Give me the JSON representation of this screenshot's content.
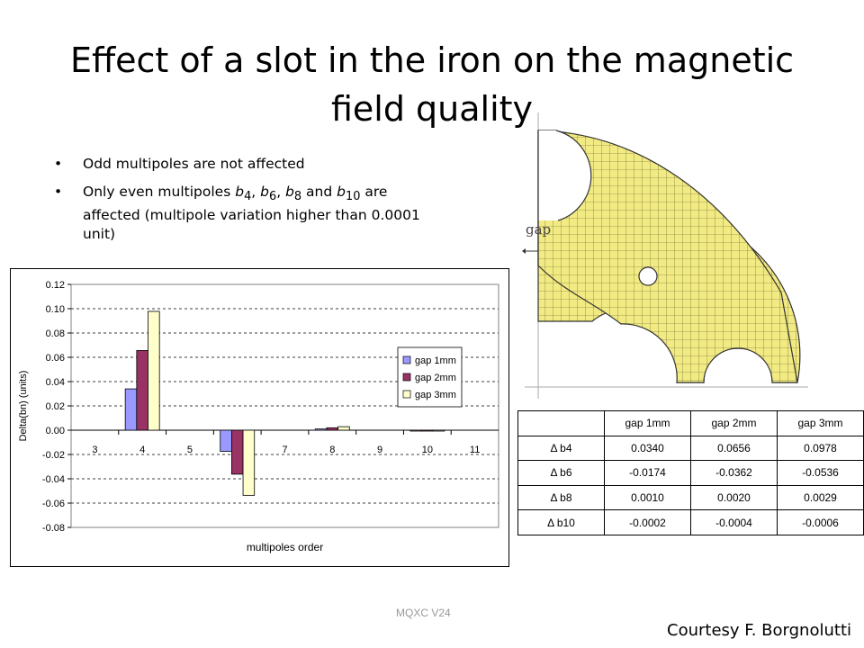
{
  "slide": {
    "title_line1": "Effect of a slot in the iron on the magnetic",
    "title_line2": "field quality",
    "bullets": [
      {
        "text": "Odd multipoles are not affected"
      },
      {
        "pre": "Only even multipoles ",
        "m1": "b",
        "s1": "4",
        "c1": ", ",
        "m2": "b",
        "s2": "6",
        "c2": ", ",
        "m3": "b",
        "s3": "8",
        "c3": " and ",
        "m4": "b",
        "s4": "10",
        "post": " are affected (multipole variation higher than 0.0001 unit)"
      }
    ],
    "gap_label": "gap",
    "footer": "MQXC V24",
    "courtesy": "Courtesy F. Borgnolutti",
    "accent_colors": {
      "mesh_fill": "#f2ea82",
      "mesh_line": "#5a5a2a"
    }
  },
  "table": {
    "headers": [
      "",
      "gap 1mm",
      "gap 2mm",
      "gap 3mm"
    ],
    "rows": [
      [
        "Δ b4",
        "0.0340",
        "0.0656",
        "0.0978"
      ],
      [
        "Δ b6",
        "-0.0174",
        "-0.0362",
        "-0.0536"
      ],
      [
        "Δ b8",
        "0.0010",
        "0.0020",
        "0.0029"
      ],
      [
        "Δ b10",
        "-0.0002",
        "-0.0004",
        "-0.0006"
      ]
    ]
  },
  "chart_data": {
    "type": "bar",
    "categories": [
      "3",
      "4",
      "5",
      "6",
      "7",
      "8",
      "9",
      "10",
      "11"
    ],
    "series": [
      {
        "name": "gap 1mm",
        "color": "#9999ff",
        "values": [
          0,
          0.034,
          0,
          -0.0174,
          0,
          0.001,
          0,
          -0.0002,
          0
        ]
      },
      {
        "name": "gap 2mm",
        "color": "#993366",
        "values": [
          0,
          0.0656,
          0,
          -0.0362,
          0,
          0.002,
          0,
          -0.0004,
          0
        ]
      },
      {
        "name": "gap 3mm",
        "color": "#ffffcc",
        "values": [
          0,
          0.0978,
          0,
          -0.0536,
          0,
          0.0029,
          0,
          -0.0006,
          0
        ]
      }
    ],
    "xlabel": "multipoles order",
    "ylabel": "Delta(bn) (units)",
    "ylim": [
      -0.08,
      0.12
    ],
    "yticks": [
      "0.12",
      "0.10",
      "0.08",
      "0.06",
      "0.04",
      "0.02",
      "0.00",
      "-0.02",
      "-0.04",
      "-0.06",
      "-0.08"
    ],
    "grid": true,
    "legend_position": "right"
  }
}
